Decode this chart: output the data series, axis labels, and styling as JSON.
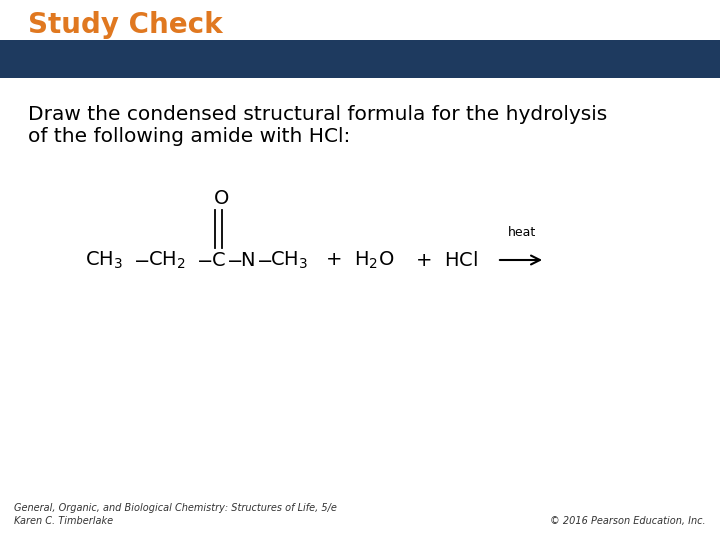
{
  "title": "Study Check",
  "title_color": "#E07820",
  "title_fontsize": 20,
  "title_bold": true,
  "banner_color": "#1E3A5F",
  "body_text": "Draw the condensed structural formula for the hydrolysis\nof the following amide with HCl:",
  "body_fontsize": 14.5,
  "footer_left": "General, Organic, and Biological Chemistry: Structures of Life, 5/e\nKaren C. Timberlake",
  "footer_right": "© 2016 Pearson Education, Inc.",
  "footer_fontsize": 7,
  "background_color": "#FFFFFF",
  "formula_fontsize": 14,
  "formula_color": "#000000"
}
